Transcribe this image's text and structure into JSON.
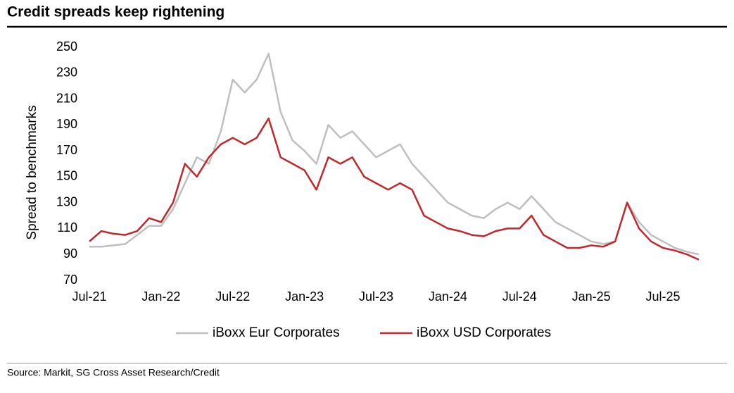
{
  "chart_data": {
    "type": "line",
    "title": "Credit spreads keep rightening",
    "y_label": "Spread to benchmarks",
    "source": "Source: Markit, SG Cross Asset Research/Credit",
    "x": [
      "2021-07",
      "2021-08",
      "2021-09",
      "2021-10",
      "2021-11",
      "2021-12",
      "2022-01",
      "2022-02",
      "2022-03",
      "2022-04",
      "2022-05",
      "2022-06",
      "2022-07",
      "2022-08",
      "2022-09",
      "2022-10",
      "2022-11",
      "2022-12",
      "2023-01",
      "2023-02",
      "2023-03",
      "2023-04",
      "2023-05",
      "2023-06",
      "2023-07",
      "2023-08",
      "2023-09",
      "2023-10",
      "2023-11",
      "2023-12",
      "2024-01",
      "2024-02",
      "2024-03",
      "2024-04",
      "2024-05",
      "2024-06",
      "2024-07",
      "2024-08",
      "2024-09",
      "2024-10",
      "2024-11",
      "2024-12",
      "2025-01",
      "2025-02",
      "2025-03",
      "2025-04",
      "2025-05",
      "2025-06",
      "2025-07",
      "2025-08",
      "2025-09",
      "2025-10"
    ],
    "series": [
      {
        "name": "iBoxx Eur Corporates",
        "color": "#bfbfbf",
        "values": [
          96,
          96,
          97,
          98,
          105,
          112,
          112,
          125,
          145,
          165,
          160,
          185,
          225,
          215,
          225,
          245,
          200,
          178,
          170,
          160,
          190,
          180,
          185,
          175,
          165,
          170,
          175,
          160,
          150,
          140,
          130,
          125,
          120,
          118,
          125,
          130,
          125,
          135,
          125,
          115,
          110,
          105,
          100,
          98,
          100,
          130,
          115,
          105,
          100,
          95,
          92,
          90
        ]
      },
      {
        "name": "iBoxx USD Corporates",
        "color": "#c0282d",
        "values": [
          100,
          108,
          106,
          105,
          108,
          118,
          115,
          130,
          160,
          150,
          165,
          175,
          180,
          175,
          180,
          195,
          165,
          160,
          155,
          140,
          165,
          160,
          165,
          150,
          145,
          140,
          145,
          140,
          120,
          115,
          110,
          108,
          105,
          104,
          108,
          110,
          110,
          120,
          105,
          100,
          95,
          95,
          97,
          96,
          100,
          130,
          110,
          100,
          95,
          93,
          90,
          86
        ]
      }
    ],
    "xlim": [
      "2021-07",
      "2025-10"
    ],
    "xticks": [
      {
        "value": "2021-07",
        "label": "Jul-21"
      },
      {
        "value": "2022-01",
        "label": "Jan-22"
      },
      {
        "value": "2022-07",
        "label": "Jul-22"
      },
      {
        "value": "2023-01",
        "label": "Jan-23"
      },
      {
        "value": "2023-07",
        "label": "Jul-23"
      },
      {
        "value": "2024-01",
        "label": "Jan-24"
      },
      {
        "value": "2024-07",
        "label": "Jul-24"
      },
      {
        "value": "2025-01",
        "label": "Jan-25"
      },
      {
        "value": "2025-07",
        "label": "Jul-25"
      }
    ],
    "ylim": [
      70,
      250
    ],
    "yticks": [
      70,
      90,
      110,
      130,
      150,
      170,
      190,
      210,
      230,
      250
    ],
    "legend": "bottom"
  }
}
